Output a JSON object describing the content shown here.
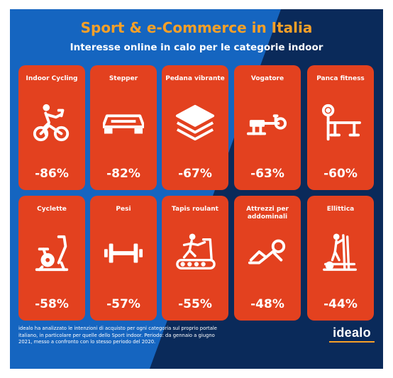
{
  "header": {
    "title": "Sport & e-Commerce in Italia",
    "subtitle": "Interesse online in calo per le categorie indoor"
  },
  "cards": [
    {
      "label": "Indoor Cycling",
      "value": "-86%",
      "icon": "indoor-cycling-icon"
    },
    {
      "label": "Stepper",
      "value": "-82%",
      "icon": "stepper-icon"
    },
    {
      "label": "Pedana vibrante",
      "value": "-67%",
      "icon": "vibration-plate-icon"
    },
    {
      "label": "Vogatore",
      "value": "-63%",
      "icon": "rowing-machine-icon"
    },
    {
      "label": "Panca fitness",
      "value": "-60%",
      "icon": "weight-bench-icon"
    },
    {
      "label": "Cyclette",
      "value": "-58%",
      "icon": "exercise-bike-icon"
    },
    {
      "label": "Pesi",
      "value": "-57%",
      "icon": "dumbbell-icon"
    },
    {
      "label": "Tapis roulant",
      "value": "-55%",
      "icon": "treadmill-icon"
    },
    {
      "label": "Attrezzi per addominali",
      "value": "-48%",
      "icon": "abs-equipment-icon"
    },
    {
      "label": "Ellittica",
      "value": "-44%",
      "icon": "elliptical-icon"
    }
  ],
  "footnote": "idealo ha analizzato le intenzioni di acquisto per ogni categoria sul proprio portale italiano, in particolare per quelle dello Sport indoor. Periodo: da gennaio a giugno 2021, messo a confronto con lo stesso periodo del 2020.",
  "logo": "idealo",
  "colors": {
    "background_dark": "#0a2a5a",
    "background_blue": "#1565c0",
    "card": "#e3411f",
    "title": "#f6a028",
    "text": "#ffffff"
  }
}
